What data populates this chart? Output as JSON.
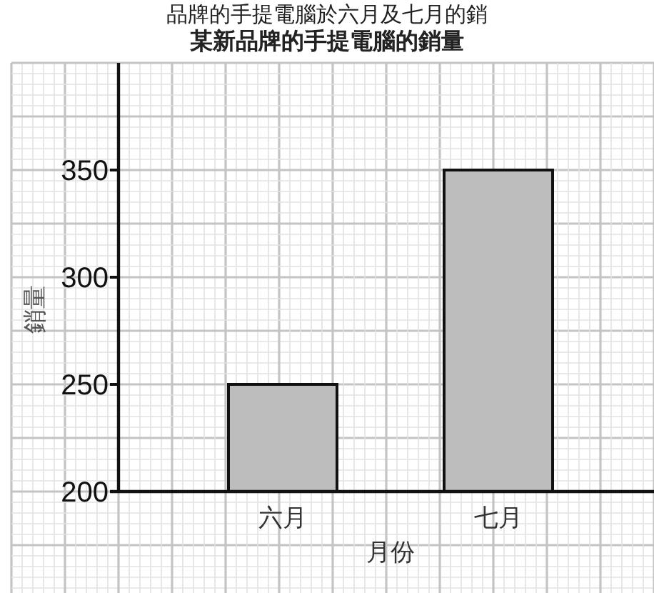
{
  "chart_data": {
    "type": "bar",
    "title": "某新品牌的手提電腦的銷量",
    "annotations": [
      "品牌的手提電腦於六月及七月的銷"
    ],
    "xlabel": "月份",
    "ylabel": "銷量",
    "categories": [
      "六月",
      "七月"
    ],
    "values": [
      250,
      350
    ],
    "color": "#bdbdbd",
    "ylim": [
      200,
      400
    ],
    "yticks": [
      200,
      250,
      300,
      350
    ],
    "grid": true
  }
}
